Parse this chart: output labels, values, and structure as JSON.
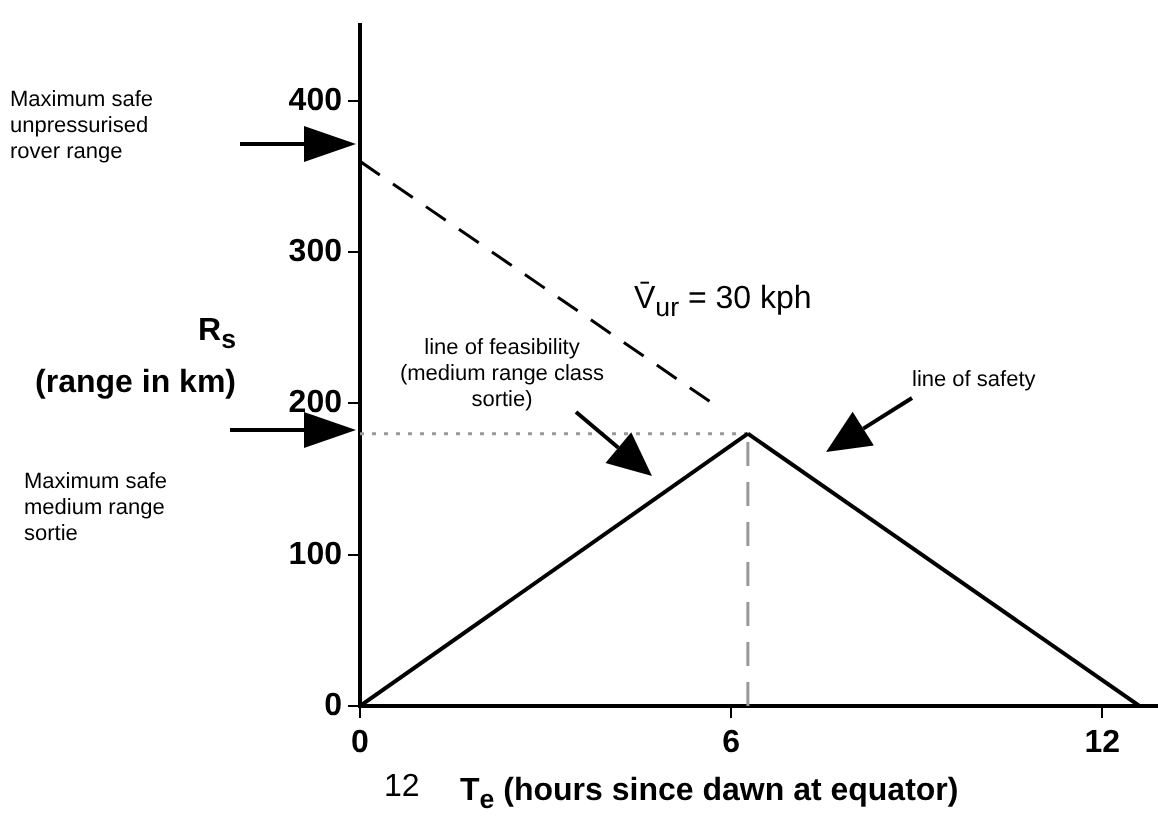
{
  "chart_data": {
    "type": "line",
    "xlabel": "T$_{e}$ (hours since dawn at equator)",
    "ylabel": "R$_{s}$ (range in km)",
    "xlim": [
      0,
      12.9
    ],
    "ylim": [
      0,
      450
    ],
    "xticks": [
      0,
      6,
      12
    ],
    "yticks": [
      0,
      100,
      200,
      300,
      400
    ],
    "grid": false,
    "legend": false,
    "marker": "none",
    "series": [
      {
        "color": "#000000",
        "x": [
          0,
          6.27
        ],
        "values": [
          0,
          180
        ],
        "line_style": "solid"
      },
      {
        "color": "#000000",
        "x": [
          6.27,
          12.6
        ],
        "values": [
          180,
          0
        ],
        "line_style": "solid"
      },
      {
        "color": "#000000",
        "x": [
          0,
          5.7
        ],
        "values": [
          360,
          200
        ],
        "line_style": "dashed"
      },
      {
        "color": "#999999",
        "x": [
          0,
          6.27
        ],
        "values": [
          180,
          180
        ],
        "line_style": "dotted"
      },
      {
        "color": "#999999",
        "x": [
          6.27,
          6.27
        ],
        "values": [
          0,
          180
        ],
        "line_style": "dashed"
      }
    ],
    "annotations": [
      "Maximum safe unpressurised rover range",
      "Maximum safe medium range sortie",
      "line of feasibility (medium range class sortie)",
      "line of safety",
      "V̄$_{ur}$ = 30 kph",
      "12"
    ]
  }
}
